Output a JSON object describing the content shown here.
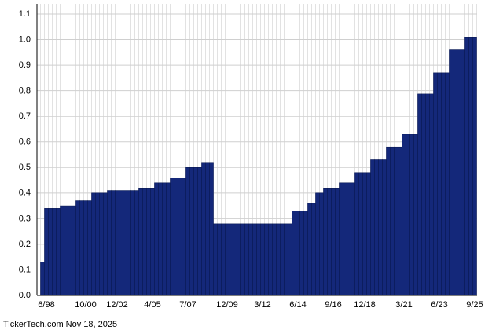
{
  "chart_data": {
    "type": "bar",
    "footer": "TickerTech.com  Nov 18, 2025",
    "categories": [
      null,
      "6/98",
      null,
      null,
      null,
      null,
      null,
      null,
      null,
      null,
      null,
      "10/00",
      null,
      null,
      null,
      null,
      null,
      null,
      null,
      "12/02",
      null,
      null,
      null,
      null,
      null,
      null,
      null,
      null,
      "4/05",
      null,
      null,
      null,
      null,
      null,
      null,
      null,
      null,
      "7/07",
      null,
      null,
      null,
      null,
      null,
      null,
      null,
      null,
      null,
      "12/09",
      null,
      null,
      null,
      null,
      null,
      null,
      null,
      null,
      "3/12",
      null,
      null,
      null,
      null,
      null,
      null,
      null,
      null,
      "6/14",
      null,
      null,
      null,
      null,
      null,
      null,
      null,
      null,
      "9/16",
      null,
      null,
      null,
      null,
      null,
      null,
      null,
      "12/18",
      null,
      null,
      null,
      null,
      null,
      null,
      null,
      null,
      null,
      "3/21",
      null,
      null,
      null,
      null,
      null,
      null,
      null,
      null,
      "6/23",
      null,
      null,
      null,
      null,
      null,
      null,
      null,
      null,
      "9/25"
    ],
    "values": [
      0.13,
      0.34,
      0.34,
      0.34,
      0.34,
      0.35,
      0.35,
      0.35,
      0.35,
      0.37,
      0.37,
      0.37,
      0.37,
      0.4,
      0.4,
      0.4,
      0.4,
      0.41,
      0.41,
      0.41,
      0.41,
      0.41,
      0.41,
      0.41,
      0.41,
      0.42,
      0.42,
      0.42,
      0.42,
      0.44,
      0.44,
      0.44,
      0.44,
      0.46,
      0.46,
      0.46,
      0.46,
      0.5,
      0.5,
      0.5,
      0.5,
      0.52,
      0.52,
      0.52,
      0.28,
      0.28,
      0.28,
      0.28,
      0.28,
      0.28,
      0.28,
      0.28,
      0.28,
      0.28,
      0.28,
      0.28,
      0.28,
      0.28,
      0.28,
      0.28,
      0.28,
      0.28,
      0.28,
      0.28,
      0.33,
      0.33,
      0.33,
      0.33,
      0.36,
      0.36,
      0.4,
      0.4,
      0.42,
      0.42,
      0.42,
      0.42,
      0.44,
      0.44,
      0.44,
      0.44,
      0.48,
      0.48,
      0.48,
      0.48,
      0.53,
      0.53,
      0.53,
      0.53,
      0.58,
      0.58,
      0.58,
      0.58,
      0.63,
      0.63,
      0.63,
      0.63,
      0.79,
      0.79,
      0.79,
      0.79,
      0.87,
      0.87,
      0.87,
      0.87,
      0.96,
      0.96,
      0.96,
      0.96,
      1.01,
      1.01,
      1.01
    ],
    "color": "#14287a",
    "ylim": [
      0,
      1.14
    ],
    "yticks": [
      {
        "value": 0,
        "label": "0.0"
      },
      0.1,
      0.2,
      0.3,
      0.4,
      0.5,
      0.6,
      0.7,
      0.8,
      0.9,
      {
        "value": 1,
        "label": "1.0"
      },
      1.1
    ],
    "grid": true
  }
}
